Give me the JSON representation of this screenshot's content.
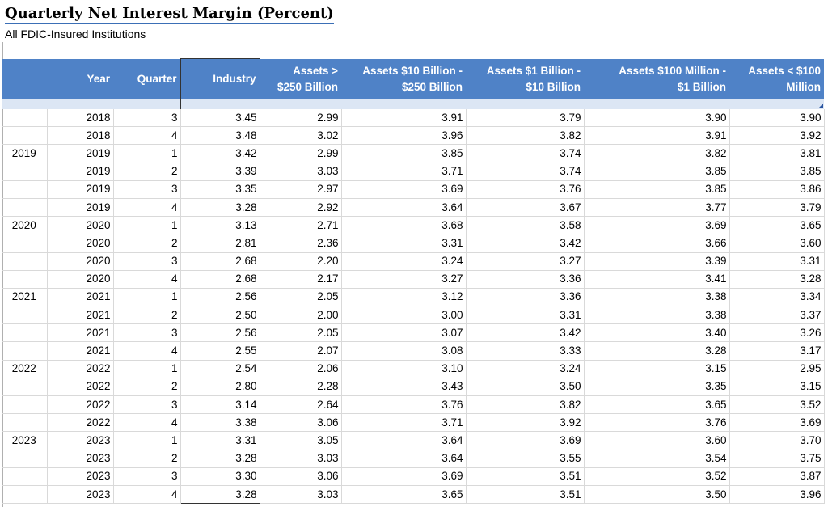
{
  "title": "Quarterly Net Interest Margin (Percent)",
  "subtitle": "All FDIC-Insured Institutions",
  "columns": {
    "year": "Year",
    "quarter": "Quarter",
    "industry": "Industry",
    "assets_250b": [
      "Assets >",
      "$250 Billion"
    ],
    "assets_10b_250b": [
      "Assets  $10 Billion -",
      "$250 Billion"
    ],
    "assets_1b_10b": [
      "Assets  $1 Billion -",
      "$10 Billion"
    ],
    "assets_100m_1b": [
      "Assets  $100 Million -",
      "$1 Billion"
    ],
    "assets_lt_100m": [
      "Assets < $100",
      "Million"
    ]
  },
  "rows": [
    {
      "label": "",
      "year": "2018",
      "quarter": "3",
      "industry": "3.45",
      "a250": "2.99",
      "a10b": "3.91",
      "a1b": "3.79",
      "a100m": "3.90",
      "small": "3.90"
    },
    {
      "label": "",
      "year": "2018",
      "quarter": "4",
      "industry": "3.48",
      "a250": "3.02",
      "a10b": "3.96",
      "a1b": "3.82",
      "a100m": "3.91",
      "small": "3.92"
    },
    {
      "label": "2019",
      "year": "2019",
      "quarter": "1",
      "industry": "3.42",
      "a250": "2.99",
      "a10b": "3.85",
      "a1b": "3.74",
      "a100m": "3.82",
      "small": "3.81"
    },
    {
      "label": "",
      "year": "2019",
      "quarter": "2",
      "industry": "3.39",
      "a250": "3.03",
      "a10b": "3.71",
      "a1b": "3.74",
      "a100m": "3.85",
      "small": "3.85"
    },
    {
      "label": "",
      "year": "2019",
      "quarter": "3",
      "industry": "3.35",
      "a250": "2.97",
      "a10b": "3.69",
      "a1b": "3.76",
      "a100m": "3.85",
      "small": "3.86"
    },
    {
      "label": "",
      "year": "2019",
      "quarter": "4",
      "industry": "3.28",
      "a250": "2.92",
      "a10b": "3.64",
      "a1b": "3.67",
      "a100m": "3.77",
      "small": "3.79"
    },
    {
      "label": "2020",
      "year": "2020",
      "quarter": "1",
      "industry": "3.13",
      "a250": "2.71",
      "a10b": "3.68",
      "a1b": "3.58",
      "a100m": "3.69",
      "small": "3.65"
    },
    {
      "label": "",
      "year": "2020",
      "quarter": "2",
      "industry": "2.81",
      "a250": "2.36",
      "a10b": "3.31",
      "a1b": "3.42",
      "a100m": "3.66",
      "small": "3.60"
    },
    {
      "label": "",
      "year": "2020",
      "quarter": "3",
      "industry": "2.68",
      "a250": "2.20",
      "a10b": "3.24",
      "a1b": "3.27",
      "a100m": "3.39",
      "small": "3.31"
    },
    {
      "label": "",
      "year": "2020",
      "quarter": "4",
      "industry": "2.68",
      "a250": "2.17",
      "a10b": "3.27",
      "a1b": "3.36",
      "a100m": "3.41",
      "small": "3.28"
    },
    {
      "label": "2021",
      "year": "2021",
      "quarter": "1",
      "industry": "2.56",
      "a250": "2.05",
      "a10b": "3.12",
      "a1b": "3.36",
      "a100m": "3.38",
      "small": "3.34"
    },
    {
      "label": "",
      "year": "2021",
      "quarter": "2",
      "industry": "2.50",
      "a250": "2.00",
      "a10b": "3.00",
      "a1b": "3.31",
      "a100m": "3.38",
      "small": "3.37"
    },
    {
      "label": "",
      "year": "2021",
      "quarter": "3",
      "industry": "2.56",
      "a250": "2.05",
      "a10b": "3.07",
      "a1b": "3.42",
      "a100m": "3.40",
      "small": "3.26"
    },
    {
      "label": "",
      "year": "2021",
      "quarter": "4",
      "industry": "2.55",
      "a250": "2.07",
      "a10b": "3.08",
      "a1b": "3.33",
      "a100m": "3.28",
      "small": "3.17"
    },
    {
      "label": "2022",
      "year": "2022",
      "quarter": "1",
      "industry": "2.54",
      "a250": "2.06",
      "a10b": "3.10",
      "a1b": "3.24",
      "a100m": "3.15",
      "small": "2.95"
    },
    {
      "label": "",
      "year": "2022",
      "quarter": "2",
      "industry": "2.80",
      "a250": "2.28",
      "a10b": "3.43",
      "a1b": "3.50",
      "a100m": "3.35",
      "small": "3.15"
    },
    {
      "label": "",
      "year": "2022",
      "quarter": "3",
      "industry": "3.14",
      "a250": "2.64",
      "a10b": "3.76",
      "a1b": "3.82",
      "a100m": "3.65",
      "small": "3.52"
    },
    {
      "label": "",
      "year": "2022",
      "quarter": "4",
      "industry": "3.38",
      "a250": "3.06",
      "a10b": "3.71",
      "a1b": "3.92",
      "a100m": "3.76",
      "small": "3.69"
    },
    {
      "label": "2023",
      "year": "2023",
      "quarter": "1",
      "industry": "3.31",
      "a250": "3.05",
      "a10b": "3.64",
      "a1b": "3.69",
      "a100m": "3.60",
      "small": "3.70"
    },
    {
      "label": "",
      "year": "2023",
      "quarter": "2",
      "industry": "3.28",
      "a250": "3.03",
      "a10b": "3.64",
      "a1b": "3.55",
      "a100m": "3.54",
      "small": "3.75"
    },
    {
      "label": "",
      "year": "2023",
      "quarter": "3",
      "industry": "3.30",
      "a250": "3.06",
      "a10b": "3.69",
      "a1b": "3.51",
      "a100m": "3.52",
      "small": "3.87"
    },
    {
      "label": "",
      "year": "2023",
      "quarter": "4",
      "industry": "3.28",
      "a250": "3.03",
      "a10b": "3.65",
      "a1b": "3.51",
      "a100m": "3.50",
      "small": "3.96"
    }
  ],
  "colors": {
    "header_bg": "#4f82c7",
    "band_bg": "#dce6f4",
    "title_underline": "#3b6fb6"
  }
}
